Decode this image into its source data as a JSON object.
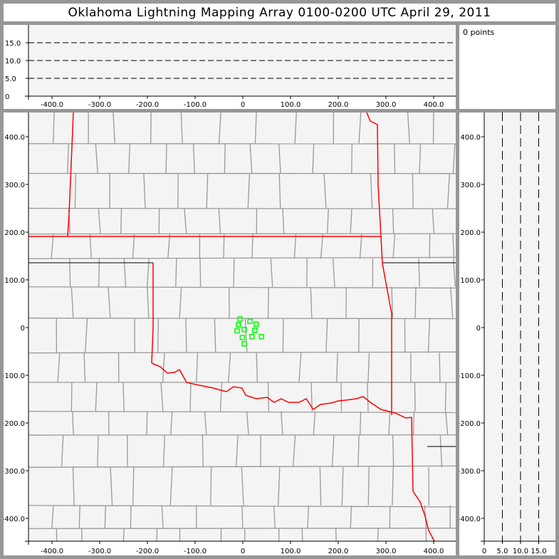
{
  "title": "Oklahoma Lightning Mapping Array   0100-0200 UTC  April 29, 2011",
  "info": {
    "point_count": "0 points"
  },
  "colors": {
    "background": "#f4f4f4",
    "state_border": "#ff0000",
    "county_border": "#999999",
    "points": "#00ff00",
    "frame": "#979797"
  },
  "chart_data": [
    {
      "type": "line",
      "panel": "altitude-vs-east-west",
      "x_ticks": [
        "-400.0",
        "-300.0",
        "-200.0",
        "-100.0",
        "0",
        "100.0",
        "200.0",
        "300.0",
        "400.0"
      ],
      "y_ticks": [
        "0",
        "5.0",
        "10.0",
        "15.0"
      ],
      "xlim": [
        -450,
        445
      ],
      "ylim": [
        0,
        20
      ],
      "grid": "dashed at 5, 10, 15",
      "points": []
    },
    {
      "type": "scatter",
      "panel": "plan-view-map",
      "x_ticks": [
        "-400.0",
        "-300.0",
        "-200.0",
        "-100.0",
        "0",
        "100.0",
        "200.0",
        "300.0",
        "400.0"
      ],
      "y_ticks": [
        "400.0",
        "300.0",
        "200.0",
        "100.0",
        "0",
        "-100.0",
        "-200.0",
        "-300.0",
        "-400.0"
      ],
      "xlim": [
        -450,
        445
      ],
      "ylim": [
        -448,
        451
      ],
      "marker": "hollow square",
      "points": [
        [
          -6,
          18
        ],
        [
          15,
          13
        ],
        [
          -9,
          6
        ],
        [
          28,
          7
        ],
        [
          -12,
          -7
        ],
        [
          3,
          -4
        ],
        [
          25,
          -6
        ],
        [
          -1,
          -21
        ],
        [
          19,
          -19
        ],
        [
          39,
          -19
        ],
        [
          3,
          -34
        ]
      ]
    },
    {
      "type": "line",
      "panel": "north-south-vs-altitude",
      "x_ticks": [
        "0",
        "5.0",
        "10.0",
        "15.0"
      ],
      "y_ticks": [
        "400.0",
        "300.0",
        "200.0",
        "100.0",
        "0",
        "-100.0",
        "-200.0",
        "-300.0",
        "-400.0"
      ],
      "xlim": [
        0,
        20
      ],
      "ylim": [
        -448,
        451
      ],
      "grid": "dashed at 5, 10, 15",
      "points": []
    }
  ]
}
